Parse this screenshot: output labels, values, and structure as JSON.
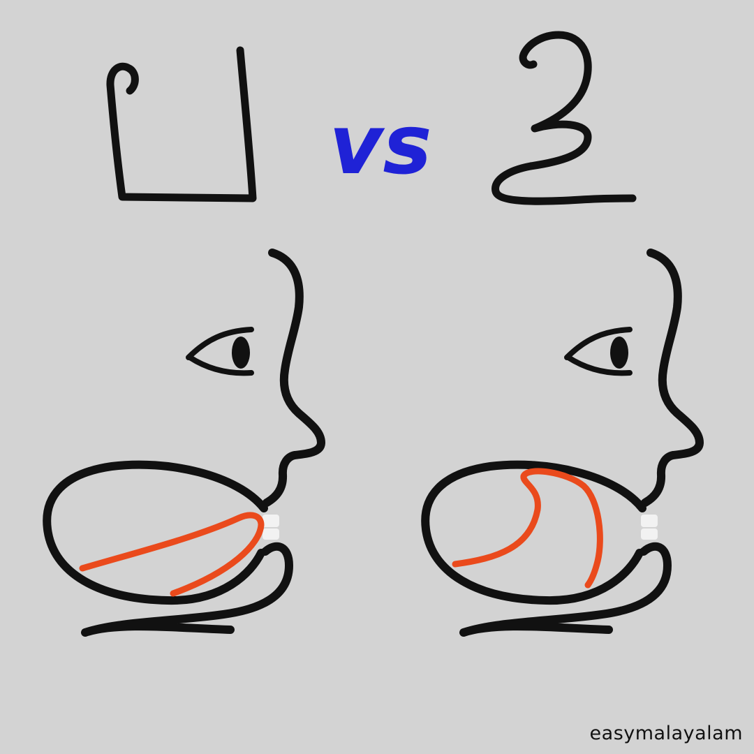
{
  "comparison": {
    "left_letter": "ഥ",
    "separator": "vs",
    "right_letter": "ഴ"
  },
  "diagrams": {
    "left": {
      "tongue_position": "flat, tip touching upper teeth"
    },
    "right": {
      "tongue_position": "curled back toward palate (retroflex)"
    }
  },
  "colors": {
    "background": "#d3d3d3",
    "outline": "#111111",
    "tongue": "#ea4a1c",
    "separator": "#1f22d6",
    "teeth": "#f2f2f2"
  },
  "brand": {
    "watermark": "easymalayalam"
  }
}
